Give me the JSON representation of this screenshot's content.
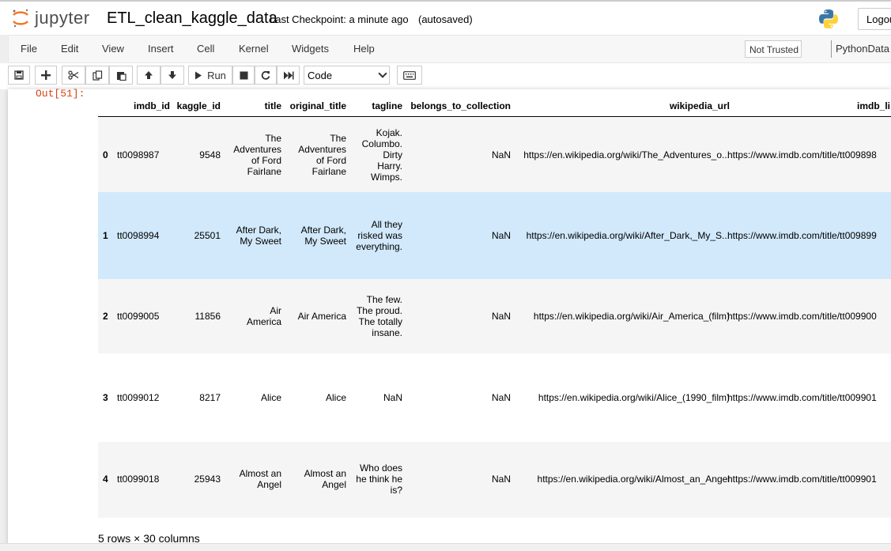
{
  "header": {
    "logo_text": "jupyter",
    "notebook_name": "ETL_clean_kaggle_data",
    "checkpoint": "Last Checkpoint: a minute ago",
    "autosaved": "(autosaved)",
    "logout": "Logou"
  },
  "menu": {
    "items": [
      "File",
      "Edit",
      "View",
      "Insert",
      "Cell",
      "Kernel",
      "Widgets",
      "Help"
    ],
    "not_trusted": "Not Trusted",
    "kernel": "PythonData"
  },
  "toolbar": {
    "run_label": "Run",
    "cell_type": "Code"
  },
  "output": {
    "prompt": "Out[51]:",
    "columns": [
      "imdb_id",
      "kaggle_id",
      "title",
      "original_title",
      "tagline",
      "belongs_to_collection",
      "wikipedia_url",
      "imdb_li"
    ],
    "rows": [
      {
        "index": "0",
        "imdb_id": "tt0098987",
        "kaggle_id": "9548",
        "title": "The\nAdventures\nof Ford\nFairlane",
        "original_title": "The\nAdventures\nof Ford\nFairlane",
        "tagline": "Kojak.\nColumbo.\nDirty\nHarry.\nWimps.",
        "belongs_to_collection": "NaN",
        "wikipedia_url": "https://en.wikipedia.org/wiki/The_Adventures_o...",
        "imdb_link": "https://www.imdb.com/title/tt009898"
      },
      {
        "index": "1",
        "imdb_id": "tt0098994",
        "kaggle_id": "25501",
        "title": "After Dark,\nMy Sweet",
        "original_title": "After Dark,\nMy Sweet",
        "tagline": "All they\nrisked was\neverything.",
        "belongs_to_collection": "NaN",
        "wikipedia_url": "https://en.wikipedia.org/wiki/After_Dark,_My_S...",
        "imdb_link": "https://www.imdb.com/title/tt009899"
      },
      {
        "index": "2",
        "imdb_id": "tt0099005",
        "kaggle_id": "11856",
        "title": "Air\nAmerica",
        "original_title": "Air America",
        "tagline": "The few.\nThe proud.\nThe totally\ninsane.",
        "belongs_to_collection": "NaN",
        "wikipedia_url": "https://en.wikipedia.org/wiki/Air_America_(film)",
        "imdb_link": "https://www.imdb.com/title/tt009900"
      },
      {
        "index": "3",
        "imdb_id": "tt0099012",
        "kaggle_id": "8217",
        "title": "Alice",
        "original_title": "Alice",
        "tagline": "NaN",
        "belongs_to_collection": "NaN",
        "wikipedia_url": "https://en.wikipedia.org/wiki/Alice_(1990_film)",
        "imdb_link": "https://www.imdb.com/title/tt009901"
      },
      {
        "index": "4",
        "imdb_id": "tt0099018",
        "kaggle_id": "25943",
        "title": "Almost an\nAngel",
        "original_title": "Almost an\nAngel",
        "tagline": "Who does\nhe think he\nis?",
        "belongs_to_collection": "NaN",
        "wikipedia_url": "https://en.wikipedia.org/wiki/Almost_an_Angel",
        "imdb_link": "https://www.imdb.com/title/tt009901"
      }
    ],
    "footer": "5 rows × 30 columns"
  },
  "colors": {
    "out_prompt": "#d84315",
    "row_hover": "#d1e9fb",
    "row_odd": "#f5f5f5"
  }
}
